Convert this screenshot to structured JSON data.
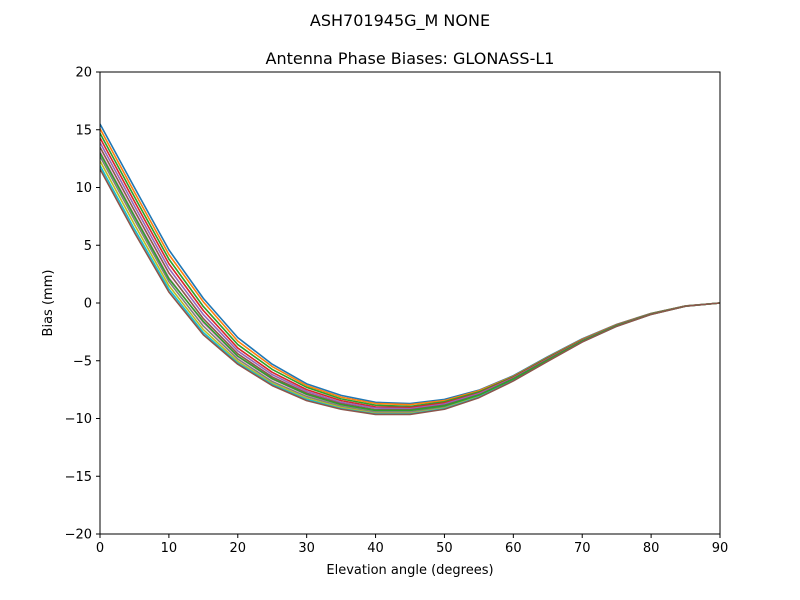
{
  "figure": {
    "suptitle": "ASH701945G_M    NONE"
  },
  "chart_data": {
    "type": "line",
    "title": "Antenna Phase Biases: GLONASS-L1",
    "xlabel": "Elevation angle (degrees)",
    "ylabel": "Bias (mm)",
    "xlim": [
      0,
      90
    ],
    "ylim": [
      -20,
      20
    ],
    "xticks": [
      0,
      10,
      20,
      30,
      40,
      50,
      60,
      70,
      80,
      90
    ],
    "yticks": [
      -20,
      -15,
      -10,
      -5,
      0,
      5,
      10,
      15,
      20
    ],
    "ytick_labels": [
      "−20",
      "−15",
      "−10",
      "−5",
      "0",
      "5",
      "10",
      "15",
      "20"
    ],
    "xtick_labels": [
      "0",
      "10",
      "20",
      "30",
      "40",
      "50",
      "60",
      "70",
      "80",
      "90"
    ],
    "grid": false,
    "legend": "none",
    "x": [
      0,
      5,
      10,
      15,
      20,
      25,
      30,
      35,
      40,
      45,
      50,
      55,
      60,
      65,
      70,
      75,
      80,
      85,
      90
    ],
    "series": [
      {
        "color": "#1f77b4",
        "values": [
          15.5,
          10.0,
          4.6,
          0.4,
          -3.0,
          -5.3,
          -7.0,
          -8.0,
          -8.6,
          -8.7,
          -8.35,
          -7.55,
          -6.3,
          -4.65,
          -3.1,
          -1.85,
          -0.9,
          -0.25,
          0.0
        ]
      },
      {
        "color": "#ff7f0e",
        "values": [
          15.1,
          9.6,
          4.2,
          0.1,
          -3.3,
          -5.5,
          -7.15,
          -8.15,
          -8.7,
          -8.8,
          -8.45,
          -7.6,
          -6.35,
          -4.7,
          -3.15,
          -1.87,
          -0.91,
          -0.25,
          0.0
        ]
      },
      {
        "color": "#2ca02c",
        "values": [
          14.7,
          9.2,
          3.8,
          -0.3,
          -3.6,
          -5.75,
          -7.3,
          -8.3,
          -8.85,
          -8.95,
          -8.55,
          -7.7,
          -6.4,
          -4.75,
          -3.2,
          -1.9,
          -0.92,
          -0.26,
          0.0
        ]
      },
      {
        "color": "#d62728",
        "values": [
          14.3,
          8.8,
          3.4,
          -0.65,
          -3.9,
          -6.0,
          -7.5,
          -8.45,
          -9.0,
          -9.05,
          -8.65,
          -7.8,
          -6.45,
          -4.8,
          -3.22,
          -1.91,
          -0.93,
          -0.26,
          0.0
        ]
      },
      {
        "color": "#9467bd",
        "values": [
          13.9,
          8.4,
          3.0,
          -1.0,
          -4.15,
          -6.2,
          -7.65,
          -8.6,
          -9.1,
          -9.15,
          -8.75,
          -7.85,
          -6.5,
          -4.85,
          -3.25,
          -1.93,
          -0.94,
          -0.26,
          0.0
        ]
      },
      {
        "color": "#8c564b",
        "values": [
          13.5,
          8.0,
          2.6,
          -1.35,
          -4.4,
          -6.4,
          -7.8,
          -8.72,
          -9.25,
          -9.25,
          -8.85,
          -7.95,
          -6.55,
          -4.9,
          -3.28,
          -1.95,
          -0.95,
          -0.27,
          0.0
        ]
      },
      {
        "color": "#e377c2",
        "values": [
          13.1,
          7.6,
          2.2,
          -1.7,
          -4.65,
          -6.6,
          -7.95,
          -8.85,
          -9.35,
          -9.35,
          -8.95,
          -8.0,
          -6.6,
          -4.95,
          -3.3,
          -1.97,
          -0.96,
          -0.27,
          0.0
        ]
      },
      {
        "color": "#7f7f7f",
        "values": [
          12.7,
          7.2,
          1.85,
          -2.0,
          -4.85,
          -6.8,
          -8.1,
          -8.95,
          -9.45,
          -9.45,
          -9.0,
          -8.05,
          -6.65,
          -4.98,
          -3.33,
          -1.98,
          -0.97,
          -0.27,
          0.0
        ]
      },
      {
        "color": "#bcbd22",
        "values": [
          12.3,
          6.8,
          1.5,
          -2.3,
          -5.05,
          -6.95,
          -8.25,
          -9.05,
          -9.55,
          -9.55,
          -9.1,
          -8.1,
          -6.7,
          -5.0,
          -3.35,
          -2.0,
          -0.98,
          -0.28,
          0.0
        ]
      },
      {
        "color": "#17becf",
        "values": [
          11.9,
          6.4,
          1.2,
          -2.55,
          -5.2,
          -7.05,
          -8.35,
          -9.15,
          -9.6,
          -9.6,
          -9.15,
          -8.15,
          -6.72,
          -5.02,
          -3.36,
          -2.01,
          -0.98,
          -0.28,
          0.0
        ]
      },
      {
        "color": "#2ca02c",
        "values": [
          13.0,
          7.5,
          2.1,
          -1.6,
          -4.6,
          -6.55,
          -7.9,
          -8.8,
          -9.3,
          -9.3,
          -8.9,
          -7.98,
          -6.58,
          -4.93,
          -3.29,
          -1.96,
          -0.96,
          -0.27,
          0.0
        ]
      },
      {
        "color": "#8c564b",
        "values": [
          11.6,
          6.1,
          0.95,
          -2.75,
          -5.3,
          -7.15,
          -8.45,
          -9.2,
          -9.65,
          -9.65,
          -9.2,
          -8.2,
          -6.75,
          -5.05,
          -3.38,
          -2.02,
          -0.99,
          -0.28,
          0.0
        ]
      }
    ]
  }
}
